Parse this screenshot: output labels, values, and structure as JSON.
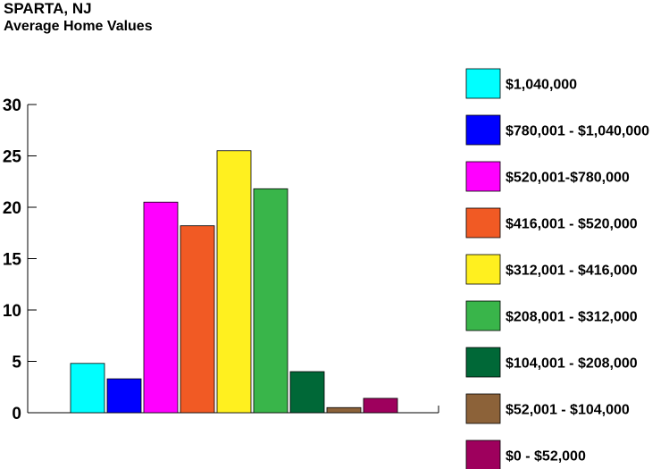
{
  "chart_data": {
    "type": "bar",
    "title": "SPARTA, NJ",
    "subtitle": "Average Home Values",
    "xlabel": "",
    "ylabel": "",
    "ylim": [
      0,
      30
    ],
    "yticks": [
      0,
      5,
      10,
      15,
      20,
      25,
      30
    ],
    "grid": false,
    "legend_position": "right",
    "categories": [
      "$1,040,000",
      "$780,001 - $1,040,000",
      "$520,001-$780,000",
      "$416,001 - $520,000",
      "$312,001 - $416,000",
      "$208,001 - $312,000",
      "$104,001 - $208,000",
      "$52,001 - $104,000",
      "$0 - $52,000"
    ],
    "values": [
      4.8,
      3.3,
      20.5,
      18.2,
      25.5,
      21.8,
      4.0,
      0.5,
      1.4
    ],
    "colors": [
      "#00FFFF",
      "#0000FF",
      "#FF00FF",
      "#F15A24",
      "#FFF01F",
      "#39B54A",
      "#006837",
      "#8C6239",
      "#9E005D"
    ]
  }
}
